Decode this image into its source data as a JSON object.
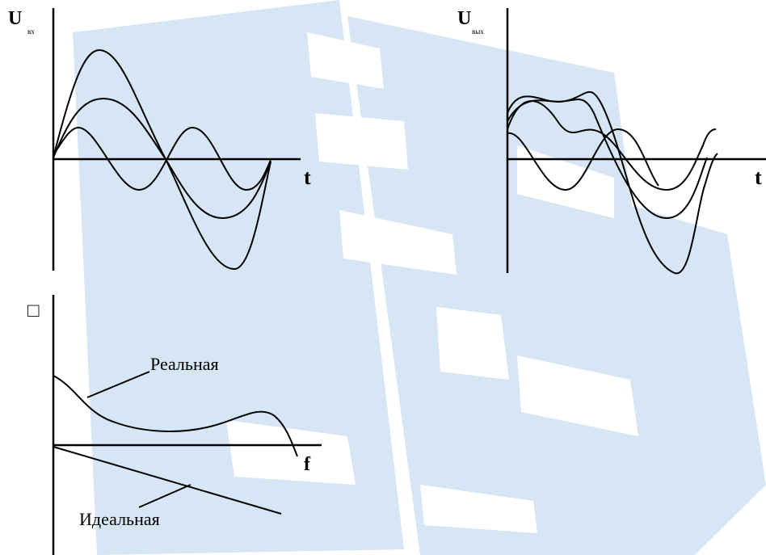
{
  "input_panel": {
    "axis_label": "U",
    "axis_subscript": "вх",
    "time_label": "t"
  },
  "output_panel": {
    "axis_label": "U",
    "axis_subscript": "вых",
    "time_label": "t"
  },
  "phase_panel": {
    "axis_label": "□",
    "frequency_label": "f",
    "real_label": "Реальная",
    "ideal_label": "Идеальная"
  }
}
